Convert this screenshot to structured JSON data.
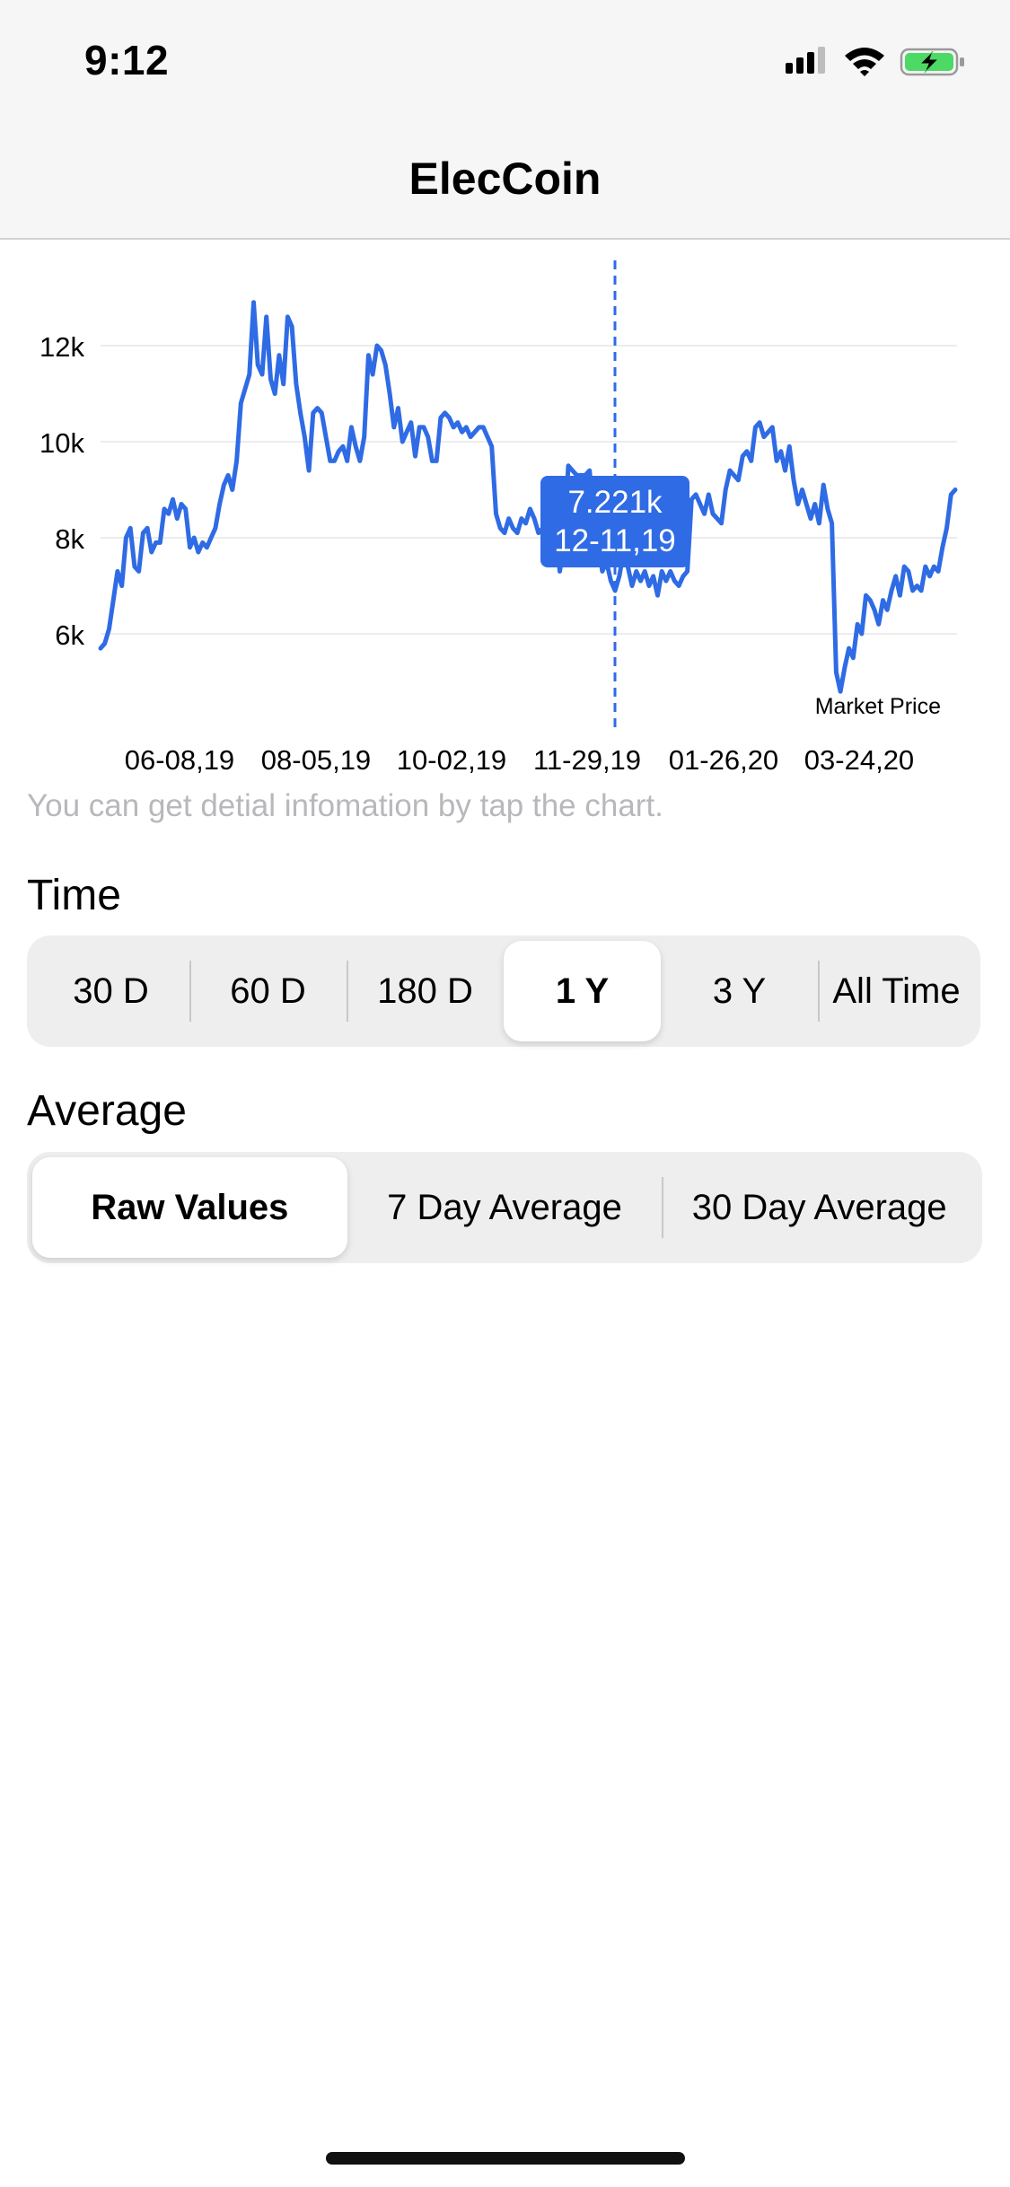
{
  "status_bar": {
    "time": "9:12"
  },
  "nav": {
    "title": "ElecCoin"
  },
  "chart_data": {
    "type": "line",
    "yticks": [
      "12k",
      "10k",
      "8k",
      "6k"
    ],
    "ytick_values": [
      12000,
      10000,
      8000,
      6000
    ],
    "xtick_labels": [
      "06-08,19",
      "08-05,19",
      "10-02,19",
      "11-29,19",
      "01-26,20",
      "03-24,20"
    ],
    "series_label": "Market Price",
    "tooltip": {
      "value": "7.221k",
      "date": "12-11,19"
    },
    "color": "#2f6be4",
    "ylim": [
      4500,
      13400
    ],
    "values": [
      5700,
      5800,
      6100,
      6700,
      7300,
      7000,
      8000,
      8200,
      7400,
      7300,
      8100,
      8200,
      7700,
      7900,
      7900,
      8600,
      8500,
      8800,
      8400,
      8700,
      8600,
      7800,
      8000,
      7700,
      7900,
      7800,
      8000,
      8200,
      8700,
      9100,
      9300,
      9000,
      9600,
      10800,
      11100,
      11400,
      12900,
      11600,
      11400,
      12600,
      11300,
      11000,
      11800,
      11200,
      12600,
      12400,
      11200,
      10600,
      10100,
      9400,
      10600,
      10700,
      10600,
      10100,
      9600,
      9600,
      9800,
      9900,
      9600,
      10300,
      9900,
      9600,
      10100,
      11800,
      11400,
      12000,
      11900,
      11600,
      11000,
      10300,
      10700,
      10000,
      10200,
      10400,
      9700,
      10300,
      10300,
      10100,
      9600,
      9600,
      10500,
      10600,
      10500,
      10300,
      10400,
      10200,
      10300,
      10100,
      10200,
      10300,
      10300,
      10100,
      9900,
      8500,
      8200,
      8100,
      8400,
      8200,
      8100,
      8400,
      8300,
      8600,
      8400,
      8100,
      8200,
      8000,
      8100,
      8300,
      7300,
      7900,
      9500,
      9400,
      9300,
      9300,
      9300,
      9400,
      8400,
      7900,
      7300,
      7500,
      7100,
      6900,
      7200,
      7700,
      7400,
      7000,
      7300,
      7100,
      7300,
      7000,
      7200,
      6800,
      7300,
      7100,
      7300,
      7100,
      7000,
      7200,
      7300,
      8800,
      8900,
      8700,
      8500,
      8900,
      8500,
      8400,
      8300,
      9000,
      9400,
      9300,
      9200,
      9700,
      9800,
      9600,
      10300,
      10400,
      10100,
      10200,
      10300,
      9600,
      9800,
      9400,
      9900,
      9200,
      8700,
      9000,
      8700,
      8400,
      8700,
      8300,
      9100,
      8600,
      8300,
      5200,
      4800,
      5300,
      5700,
      5500,
      6200,
      6000,
      6800,
      6700,
      6500,
      6200,
      6700,
      6500,
      6900,
      7200,
      6800,
      7400,
      7300,
      6900,
      7000,
      6900,
      7400,
      7200,
      7400,
      7300,
      7800,
      8200,
      8900,
      9000
    ]
  },
  "hint_text": "You can get detial infomation by tap the chart.",
  "time_section": {
    "label": "Time",
    "options": [
      "30 D",
      "60 D",
      "180 D",
      "1 Y",
      "3 Y",
      "All Time"
    ],
    "selected": "1 Y"
  },
  "average_section": {
    "label": "Average",
    "options": [
      "Raw Values",
      "7 Day Average",
      "30 Day Average"
    ],
    "selected": "Raw Values"
  }
}
